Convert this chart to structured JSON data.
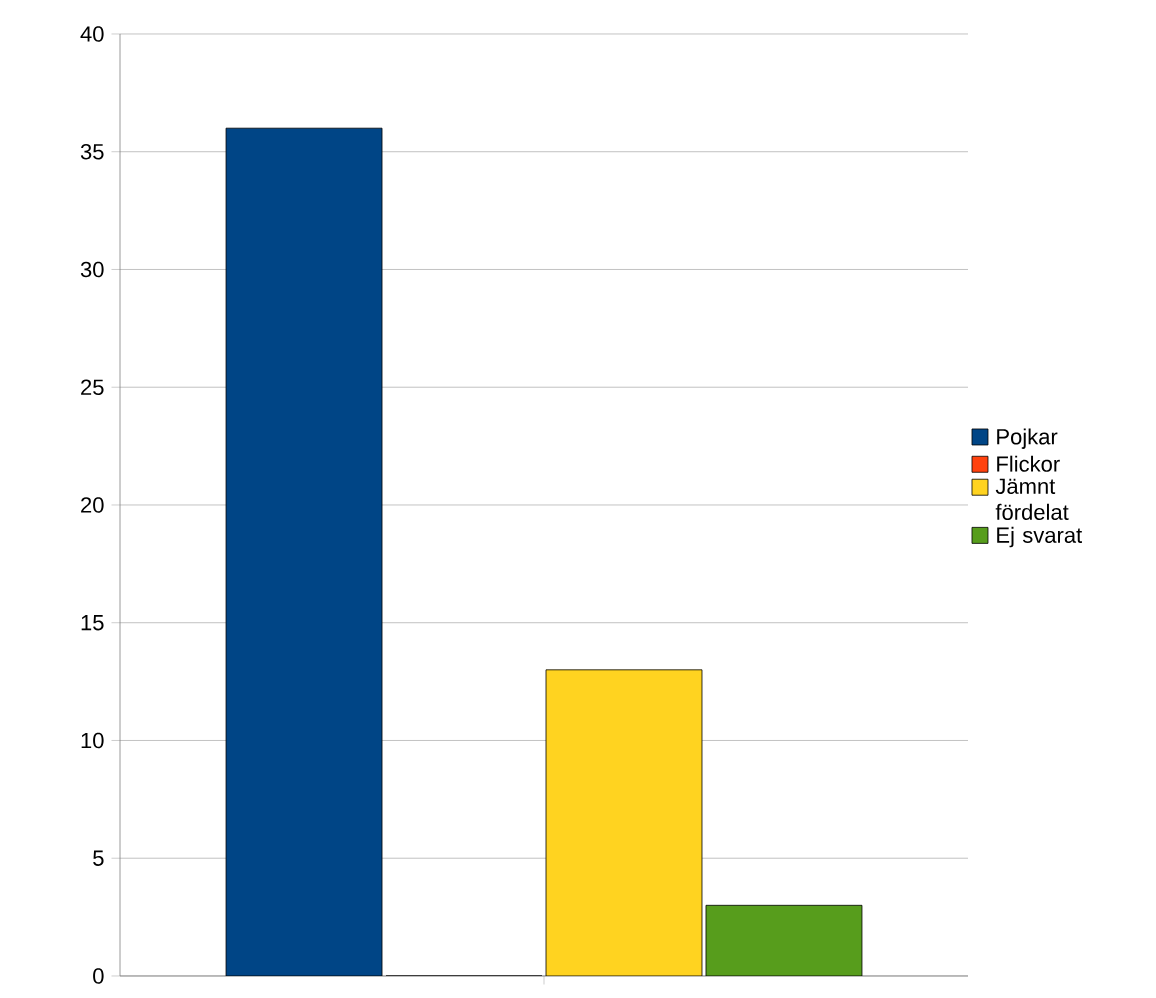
{
  "chart_data": {
    "type": "bar",
    "categories": [
      null
    ],
    "series": [
      {
        "name": "Pojkar",
        "color": "#004586",
        "values": [
          36
        ]
      },
      {
        "name": "Flickor",
        "color": "#ff420e",
        "values": [
          0
        ]
      },
      {
        "name": "Jämnt fördelat",
        "color": "#ffd320",
        "values": [
          13
        ]
      },
      {
        "name": "Ej svarat",
        "color": "#579d1c",
        "values": [
          3
        ]
      }
    ],
    "ylim": [
      0,
      40
    ],
    "yticks": [
      0,
      5,
      10,
      15,
      20,
      25,
      30,
      35,
      40
    ],
    "grid": "y",
    "legend": "right"
  }
}
